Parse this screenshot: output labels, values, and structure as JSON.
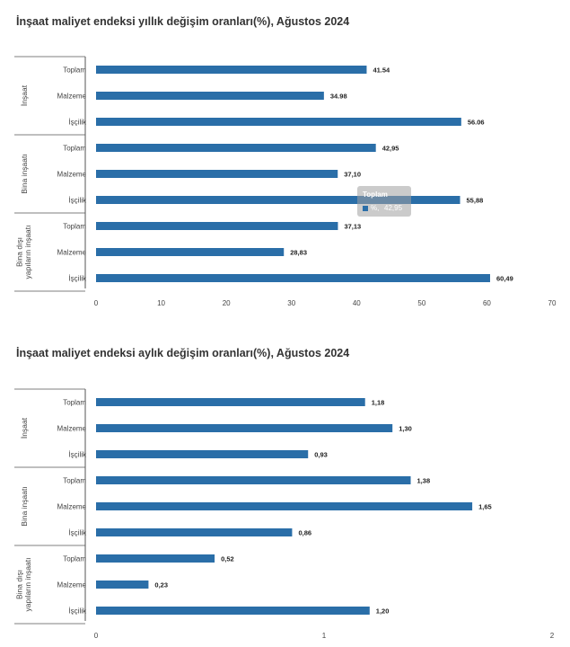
{
  "tooltip": {
    "label": "Toplam",
    "unit": "%,",
    "value": "42,95"
  },
  "chart_data": [
    {
      "type": "bar",
      "orientation": "horizontal",
      "title": "İnşaat maliyet endeksi yıllık değişim oranları(%), Ağustos 2024",
      "groups": [
        {
          "label": [
            "İnşaat"
          ],
          "categories": [
            "Toplam",
            "Malzeme",
            "İşçilik"
          ],
          "values": [
            41.54,
            34.98,
            56.06
          ],
          "value_labels": [
            "41.54",
            "34.98",
            "56.06"
          ]
        },
        {
          "label": [
            "Bina inşaatı"
          ],
          "categories": [
            "Toplam",
            "Malzeme",
            "İşçilik"
          ],
          "values": [
            42.95,
            37.1,
            55.88
          ],
          "value_labels": [
            "42,95",
            "37,10",
            "55,88"
          ]
        },
        {
          "label": [
            "Bina dışı",
            "yapıların inşaatı"
          ],
          "categories": [
            "Toplam",
            "Malzeme",
            "İşçilik"
          ],
          "values": [
            37.13,
            28.83,
            60.49
          ],
          "value_labels": [
            "37,13",
            "28,83",
            "60,49"
          ]
        }
      ],
      "xlim": [
        0,
        70
      ],
      "xticks": [
        "0",
        "10",
        "20",
        "30",
        "40",
        "50",
        "60",
        "70"
      ],
      "bar_color": "#2a6ea8",
      "xlabel": "",
      "ylabel": ""
    },
    {
      "type": "bar",
      "orientation": "horizontal",
      "title": "İnşaat maliyet endeksi aylık değişim oranları(%), Ağustos 2024",
      "groups": [
        {
          "label": [
            "İnşaat"
          ],
          "categories": [
            "Toplam",
            "Malzeme",
            "İşçilik"
          ],
          "values": [
            1.18,
            1.3,
            0.93
          ],
          "value_labels": [
            "1,18",
            "1,30",
            "0,93"
          ]
        },
        {
          "label": [
            "Bina inşaatı"
          ],
          "categories": [
            "Toplam",
            "Malzeme",
            "İşçilik"
          ],
          "values": [
            1.38,
            1.65,
            0.86
          ],
          "value_labels": [
            "1,38",
            "1,65",
            "0,86"
          ]
        },
        {
          "label": [
            "Bina dışı",
            "yapıların inşaatı"
          ],
          "categories": [
            "Toplam",
            "Malzeme",
            "İşçilik"
          ],
          "values": [
            0.52,
            0.23,
            1.2
          ],
          "value_labels": [
            "0,52",
            "0,23",
            "1,20"
          ]
        }
      ],
      "xlim": [
        0,
        2
      ],
      "xticks": [
        "0",
        "1",
        "2"
      ],
      "bar_color": "#2a6ea8",
      "xlabel": "",
      "ylabel": ""
    }
  ]
}
